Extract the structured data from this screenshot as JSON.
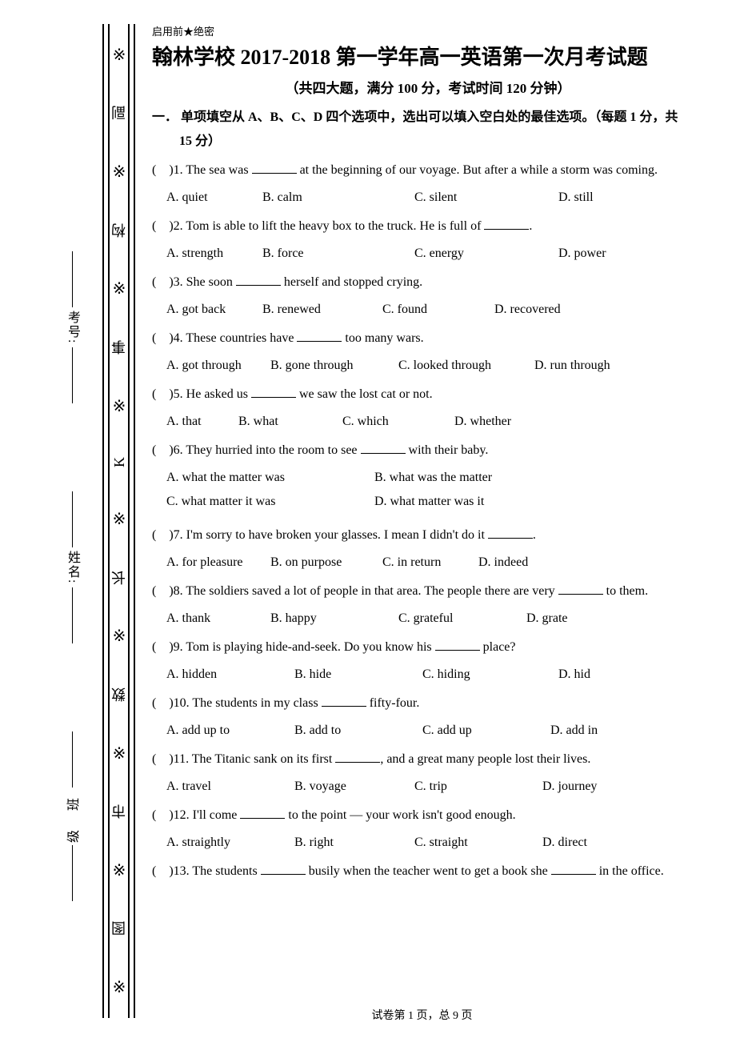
{
  "sidebar": {
    "binding_chars": [
      "※",
      "副",
      "※",
      "构",
      "※",
      "事",
      "※",
      "K",
      "※",
      "长",
      "※",
      "数",
      "※",
      "市",
      "※",
      "图",
      "※"
    ],
    "label1_text": "考号:",
    "label2_text": "姓名:",
    "label3_text": "级        班"
  },
  "header": {
    "pre_title": "启用前★绝密",
    "title": "翰林学校 2017-2018 第一学年高一英语第一次月考试题",
    "subtitle": "（共四大题，满分 100 分，考试时间 120 分钟）"
  },
  "section1": {
    "heading_line1": "一． 单项填空从 A、B、C、D 四个选项中，选出可以填入空白处的最佳选项。（每题 1 分，共",
    "heading_line2": "15 分）"
  },
  "questions": [
    {
      "n": "1",
      "stem": "The sea was _______ at the beginning of our voyage. But after a while a storm was coming.",
      "opts": [
        "A. quiet",
        "B. calm",
        "C. silent",
        "D. still"
      ],
      "widths": [
        120,
        190,
        180,
        80
      ]
    },
    {
      "n": "2",
      "stem": "Tom is able to lift the heavy box to the truck. He is full of _______.",
      "opts": [
        "A. strength",
        "B. force",
        "C. energy",
        "D. power"
      ],
      "widths": [
        120,
        190,
        180,
        80
      ]
    },
    {
      "n": "3",
      "stem": "She soon _______ herself and stopped crying.",
      "opts": [
        "A. got back",
        "B. renewed",
        "C. found",
        "D. recovered"
      ],
      "widths": [
        120,
        150,
        140,
        100
      ]
    },
    {
      "n": "4",
      "stem": "These countries have _______ too many wars.",
      "opts": [
        "A. got through",
        "B. gone through",
        "C. looked through",
        "D. run through"
      ],
      "widths": [
        130,
        160,
        170,
        120
      ]
    },
    {
      "n": "5",
      "stem": "He asked us _______ we saw the lost cat or not.",
      "opts": [
        "A. that",
        "B. what",
        "C. which",
        "D. whether"
      ],
      "widths": [
        90,
        130,
        140,
        100
      ]
    },
    {
      "n": "6",
      "stem": "They hurried into the room to see _______ with their baby.",
      "opts_two": [
        [
          "A. what the matter was",
          "B. what was the matter"
        ],
        [
          "C. what matter it was",
          "D. what matter was it"
        ]
      ],
      "col1": 260
    },
    {
      "n": "7",
      "stem": "I'm sorry to have broken your glasses. I mean I didn't do it _______.",
      "opts": [
        "A. for pleasure",
        "B. on purpose",
        "C. in return",
        "D. indeed"
      ],
      "widths": [
        130,
        140,
        120,
        80
      ]
    },
    {
      "n": "8",
      "stem": "The soldiers saved a lot of people in that area. The people there are very _______ to them.",
      "opts": [
        "A. thank",
        "B. happy",
        "C. grateful",
        "D. grate"
      ],
      "widths": [
        130,
        160,
        160,
        80
      ]
    },
    {
      "n": "9",
      "stem": "Tom is playing hide-and-seek. Do you know his _______ place?",
      "opts": [
        "A. hidden",
        "B. hide",
        "C. hiding",
        "D. hid"
      ],
      "widths": [
        160,
        160,
        170,
        60
      ]
    },
    {
      "n": "10",
      "stem": "The students in my class _______ fifty-four.",
      "opts": [
        "A. add up to",
        "B. add to",
        "C. add up",
        "D. add in"
      ],
      "widths": [
        160,
        160,
        160,
        80
      ]
    },
    {
      "n": "11",
      "stem": "The Titanic sank on its first _______, and a great many people lost their lives.",
      "opts": [
        "A. travel",
        "B. voyage",
        "C. trip",
        "D. journey"
      ],
      "widths": [
        160,
        150,
        160,
        90
      ]
    },
    {
      "n": "12",
      "stem": "I'll come _______ to the point — your work isn't good enough.",
      "opts": [
        "A. straightly",
        "B. right",
        "C. straight",
        "D. direct"
      ],
      "widths": [
        160,
        150,
        160,
        80
      ]
    },
    {
      "n": "13",
      "stem": "The students _______ busily when the teacher went to get a book she _______ in the office.",
      "opts": null
    }
  ],
  "footer": {
    "page_info": "试卷第 1 页，总 9 页"
  }
}
